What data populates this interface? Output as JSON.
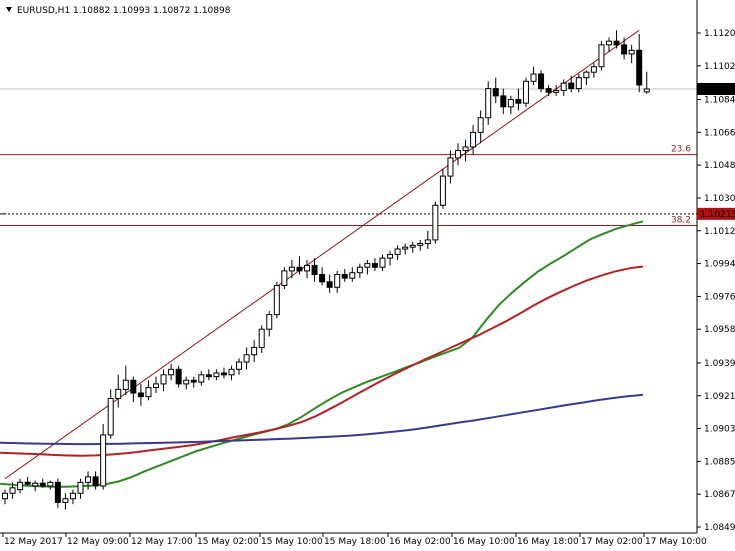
{
  "header": {
    "title": "EURUSD,H1  1.10882 1.10993 1.10872 1.10898"
  },
  "colors": {
    "background": "#ffffff",
    "candle_up": "#ffffff",
    "candle_down": "#000000",
    "trendline": "#8b1a1a",
    "fib": "#8b1a1a",
    "ma_fast": "#2e8b22",
    "ma_mid": "#b22222",
    "ma_slow": "#3a3a8c",
    "price_label_bg": "#000000",
    "fib_label_bg": "#b01010"
  },
  "labels": {
    "current_price": "1.10898",
    "fib_price": "1.10213",
    "fib_23": "23.6",
    "fib_38": "38.2"
  },
  "chart_data": {
    "type": "candlestick",
    "symbol": "EURUSD",
    "timeframe": "H1",
    "y_ticks": [
      "1.11205",
      "1.11025",
      "1.10840",
      "1.10660",
      "1.10480",
      "1.10300",
      "1.10120",
      "1.09940",
      "1.09760",
      "1.09580",
      "1.09395",
      "1.09215",
      "1.09035",
      "1.08855",
      "1.08675",
      "1.08495"
    ],
    "ylim": [
      1.08495,
      1.11205
    ],
    "x_ticks": [
      "12 May 2017",
      "12 May 09:00",
      "12 May 17:00",
      "15 May 02:00",
      "15 May 10:00",
      "15 May 18:00",
      "16 May 02:00",
      "16 May 10:00",
      "16 May 18:00",
      "17 May 02:00",
      "17 May 10:00"
    ],
    "candles": [
      [
        1.0865,
        1.087,
        1.0862,
        1.0868
      ],
      [
        1.0868,
        1.0874,
        1.0865,
        1.0871
      ],
      [
        1.087,
        1.0876,
        1.0868,
        1.0874
      ],
      [
        1.0874,
        1.0877,
        1.0872,
        1.0873
      ],
      [
        1.0872,
        1.0875,
        1.0869,
        1.08735
      ],
      [
        1.08735,
        1.0876,
        1.0871,
        1.0872
      ],
      [
        1.0872,
        1.0875,
        1.087,
        1.0874
      ],
      [
        1.0874,
        1.0876,
        1.086,
        1.0863
      ],
      [
        1.0863,
        1.0868,
        1.0859,
        1.0865
      ],
      [
        1.0865,
        1.087,
        1.0862,
        1.0868
      ],
      [
        1.0868,
        1.0876,
        1.0865,
        1.0874
      ],
      [
        1.0874,
        1.088,
        1.087,
        1.0877
      ],
      [
        1.0877,
        1.088,
        1.087,
        1.0872
      ],
      [
        1.0872,
        1.0906,
        1.087,
        1.09
      ],
      [
        1.09,
        1.0925,
        1.0898,
        1.092
      ],
      [
        1.092,
        1.0933,
        1.0915,
        1.0925
      ],
      [
        1.0925,
        1.0938,
        1.0922,
        1.093
      ],
      [
        1.093,
        1.0932,
        1.0918,
        1.0923
      ],
      [
        1.0923,
        1.0928,
        1.0916,
        1.0921
      ],
      [
        1.0921,
        1.093,
        1.0919,
        1.0926
      ],
      [
        1.0926,
        1.0932,
        1.0923,
        1.0928
      ],
      [
        1.0928,
        1.0936,
        1.0924,
        1.0933
      ],
      [
        1.0933,
        1.0939,
        1.093,
        1.0936
      ],
      [
        1.0936,
        1.0938,
        1.0926,
        1.0928
      ],
      [
        1.0928,
        1.0932,
        1.0925,
        1.093
      ],
      [
        1.093,
        1.0932,
        1.0926,
        1.0929
      ],
      [
        1.0929,
        1.0935,
        1.0927,
        1.0933
      ],
      [
        1.0933,
        1.0936,
        1.093,
        1.0932
      ],
      [
        1.0932,
        1.0936,
        1.093,
        1.0934
      ],
      [
        1.0934,
        1.0937,
        1.0931,
        1.0933
      ],
      [
        1.0933,
        1.0938,
        1.093,
        1.0936
      ],
      [
        1.0936,
        1.0942,
        1.0933,
        1.094
      ],
      [
        1.094,
        1.0948,
        1.0936,
        1.0944
      ],
      [
        1.0944,
        1.0952,
        1.094,
        1.0948
      ],
      [
        1.0948,
        1.096,
        1.0945,
        1.0958
      ],
      [
        1.0958,
        1.0968,
        1.0954,
        1.0966
      ],
      [
        1.0966,
        1.0984,
        1.0964,
        1.0982
      ],
      [
        1.0982,
        1.0992,
        1.098,
        1.099
      ],
      [
        1.099,
        1.0996,
        1.0986,
        1.0992
      ],
      [
        1.0992,
        1.0998,
        1.0988,
        1.099
      ],
      [
        1.099,
        1.0996,
        1.0986,
        1.0993
      ],
      [
        1.0993,
        1.0997,
        1.0984,
        1.0988
      ],
      [
        1.0988,
        1.0992,
        1.0982,
        1.0984
      ],
      [
        1.0984,
        1.0988,
        1.0978,
        1.0981
      ],
      [
        1.0981,
        1.099,
        1.0978,
        1.0988
      ],
      [
        1.0988,
        1.0991,
        1.0984,
        1.0986
      ],
      [
        1.0986,
        1.0992,
        1.0984,
        1.0989
      ],
      [
        1.0989,
        1.0994,
        1.0986,
        1.0992
      ],
      [
        1.0992,
        1.0996,
        1.0988,
        1.0994
      ],
      [
        1.0994,
        1.0997,
        1.099,
        1.0992
      ],
      [
        1.0992,
        1.0999,
        1.099,
        1.0997
      ],
      [
        1.0997,
        1.1001,
        1.0993,
        1.0999
      ],
      [
        1.0999,
        1.1004,
        1.0996,
        1.1002
      ],
      [
        1.1002,
        1.1005,
        1.0999,
        1.1003
      ],
      [
        1.1003,
        1.1006,
        1.1,
        1.1004
      ],
      [
        1.1004,
        1.1007,
        1.1001,
        1.1005
      ],
      [
        1.1005,
        1.1012,
        1.1002,
        1.1007
      ],
      [
        1.1007,
        1.1028,
        1.1005,
        1.1026
      ],
      [
        1.1026,
        1.1046,
        1.1024,
        1.1042
      ],
      [
        1.1042,
        1.1056,
        1.1038,
        1.1052
      ],
      [
        1.1052,
        1.106,
        1.1048,
        1.1056
      ],
      [
        1.1056,
        1.1062,
        1.105,
        1.1058
      ],
      [
        1.1058,
        1.107,
        1.1054,
        1.1066
      ],
      [
        1.1066,
        1.1078,
        1.106,
        1.1074
      ],
      [
        1.1074,
        1.1094,
        1.107,
        1.109
      ],
      [
        1.109,
        1.1096,
        1.1082,
        1.1086
      ],
      [
        1.1086,
        1.109,
        1.1076,
        1.108
      ],
      [
        1.108,
        1.1086,
        1.1076,
        1.1084
      ],
      [
        1.1084,
        1.109,
        1.1078,
        1.1082
      ],
      [
        1.1082,
        1.1096,
        1.108,
        1.1094
      ],
      [
        1.1094,
        1.1102,
        1.1092,
        1.1098
      ],
      [
        1.1098,
        1.11,
        1.1088,
        1.109
      ],
      [
        1.109,
        1.1092,
        1.1086,
        1.1088
      ],
      [
        1.1088,
        1.1092,
        1.1086,
        1.1089
      ],
      [
        1.1089,
        1.1095,
        1.1086,
        1.1093
      ],
      [
        1.1093,
        1.1097,
        1.1088,
        1.109
      ],
      [
        1.109,
        1.1098,
        1.1088,
        1.1096
      ],
      [
        1.1096,
        1.11,
        1.1092,
        1.1099
      ],
      [
        1.1099,
        1.1104,
        1.1096,
        1.1102
      ],
      [
        1.1102,
        1.1116,
        1.11,
        1.1114
      ],
      [
        1.1114,
        1.1118,
        1.111,
        1.1116
      ],
      [
        1.1116,
        1.1122,
        1.1112,
        1.1114
      ],
      [
        1.1114,
        1.1118,
        1.1106,
        1.1109
      ],
      [
        1.1109,
        1.1114,
        1.1104,
        1.1111
      ],
      [
        1.1111,
        1.112,
        1.1088,
        1.1092
      ],
      [
        1.10882,
        1.10993,
        1.10872,
        1.10898
      ]
    ],
    "series": [
      {
        "values": [
          1.08732,
          1.08727,
          1.08722,
          1.08718,
          1.08716,
          1.08716,
          1.08718,
          1.08722,
          1.0873,
          1.08744,
          1.08768,
          1.088,
          1.08828,
          1.08856,
          1.08884,
          1.08912,
          1.08934,
          1.08955,
          1.08975,
          1.08995,
          1.09014,
          1.09032,
          1.0906,
          1.091,
          1.09146,
          1.0919,
          1.0923,
          1.09262,
          1.09292,
          1.09318,
          1.09344,
          1.09372,
          1.09398,
          1.09426,
          1.09452,
          1.09478,
          1.09534,
          1.09626,
          1.09712,
          1.0978,
          1.0984,
          1.09896,
          1.09942,
          1.09984,
          1.1003,
          1.10074,
          1.10104,
          1.10132,
          1.10152,
          1.10172
        ]
      },
      {
        "values": [
          1.08902,
          1.089,
          1.08897,
          1.08894,
          1.0889,
          1.08887,
          1.08886,
          1.08888,
          1.08892,
          1.08898,
          1.08906,
          1.08916,
          1.08925,
          1.08934,
          1.08944,
          1.08956,
          1.0897,
          1.08986,
          1.09,
          1.09014,
          1.0903,
          1.09048,
          1.0907,
          1.091,
          1.09138,
          1.09178,
          1.0922,
          1.09262,
          1.09302,
          1.0934,
          1.09376,
          1.09412,
          1.09446,
          1.0948,
          1.09514,
          1.09548,
          1.09586,
          1.09624,
          1.09666,
          1.0971,
          1.0975,
          1.09786,
          1.0982,
          1.0985,
          1.09876,
          1.09898,
          1.09914,
          1.09924
        ]
      },
      {
        "values": [
          1.08957,
          1.08955,
          1.08953,
          1.08952,
          1.08951,
          1.0895,
          1.0895,
          1.08951,
          1.08952,
          1.08954,
          1.08956,
          1.08958,
          1.0896,
          1.08962,
          1.08965,
          1.08968,
          1.08971,
          1.08974,
          1.08977,
          1.0898,
          1.08984,
          1.08988,
          1.08992,
          1.08997,
          1.09004,
          1.09012,
          1.0902,
          1.0903,
          1.09042,
          1.09055,
          1.09068,
          1.0908,
          1.09094,
          1.09108,
          1.09122,
          1.09136,
          1.0915,
          1.09164,
          1.09177,
          1.0919,
          1.09202,
          1.09212,
          1.0922
        ]
      }
    ],
    "fib_levels": [
      {
        "label": "23.6",
        "price": 1.10538
      },
      {
        "label": "38.2",
        "price": 1.10149
      }
    ],
    "current_price": 1.10898,
    "horizontal_line": 1.10213,
    "trendline": {
      "from": [
        0,
        1.0876
      ],
      "to": [
        84,
        1.1122
      ]
    },
    "grid": false
  }
}
